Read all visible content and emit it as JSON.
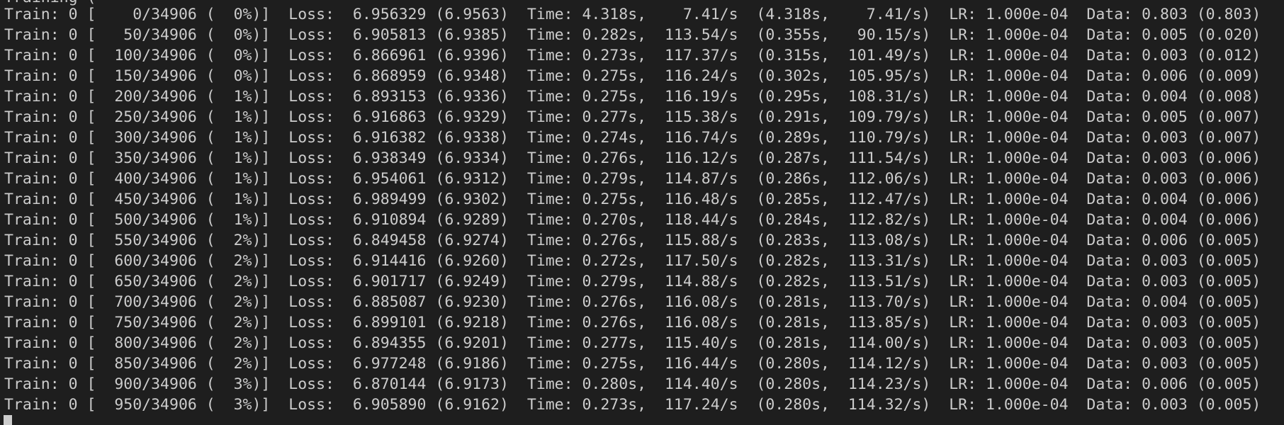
{
  "terminal": {
    "partial_line": "Training (",
    "lines": [
      "Train: 0 [    0/34906 (  0%)]  Loss:  6.956329 (6.9563)  Time: 4.318s,    7.41/s  (4.318s,    7.41/s)  LR: 1.000e-04  Data: 0.803 (0.803)",
      "Train: 0 [   50/34906 (  0%)]  Loss:  6.905813 (6.9385)  Time: 0.282s,  113.54/s  (0.355s,   90.15/s)  LR: 1.000e-04  Data: 0.005 (0.020)",
      "Train: 0 [  100/34906 (  0%)]  Loss:  6.866961 (6.9396)  Time: 0.273s,  117.37/s  (0.315s,  101.49/s)  LR: 1.000e-04  Data: 0.003 (0.012)",
      "Train: 0 [  150/34906 (  0%)]  Loss:  6.868959 (6.9348)  Time: 0.275s,  116.24/s  (0.302s,  105.95/s)  LR: 1.000e-04  Data: 0.006 (0.009)",
      "Train: 0 [  200/34906 (  1%)]  Loss:  6.893153 (6.9336)  Time: 0.275s,  116.19/s  (0.295s,  108.31/s)  LR: 1.000e-04  Data: 0.004 (0.008)",
      "Train: 0 [  250/34906 (  1%)]  Loss:  6.916863 (6.9329)  Time: 0.277s,  115.38/s  (0.291s,  109.79/s)  LR: 1.000e-04  Data: 0.005 (0.007)",
      "Train: 0 [  300/34906 (  1%)]  Loss:  6.916382 (6.9338)  Time: 0.274s,  116.74/s  (0.289s,  110.79/s)  LR: 1.000e-04  Data: 0.003 (0.007)",
      "Train: 0 [  350/34906 (  1%)]  Loss:  6.938349 (6.9334)  Time: 0.276s,  116.12/s  (0.287s,  111.54/s)  LR: 1.000e-04  Data: 0.003 (0.006)",
      "Train: 0 [  400/34906 (  1%)]  Loss:  6.954061 (6.9312)  Time: 0.279s,  114.87/s  (0.286s,  112.06/s)  LR: 1.000e-04  Data: 0.003 (0.006)",
      "Train: 0 [  450/34906 (  1%)]  Loss:  6.989499 (6.9302)  Time: 0.275s,  116.48/s  (0.285s,  112.47/s)  LR: 1.000e-04  Data: 0.004 (0.006)",
      "Train: 0 [  500/34906 (  1%)]  Loss:  6.910894 (6.9289)  Time: 0.270s,  118.44/s  (0.284s,  112.82/s)  LR: 1.000e-04  Data: 0.004 (0.006)",
      "Train: 0 [  550/34906 (  2%)]  Loss:  6.849458 (6.9274)  Time: 0.276s,  115.88/s  (0.283s,  113.08/s)  LR: 1.000e-04  Data: 0.006 (0.005)",
      "Train: 0 [  600/34906 (  2%)]  Loss:  6.914416 (6.9260)  Time: 0.272s,  117.50/s  (0.282s,  113.31/s)  LR: 1.000e-04  Data: 0.003 (0.005)",
      "Train: 0 [  650/34906 (  2%)]  Loss:  6.901717 (6.9249)  Time: 0.279s,  114.88/s  (0.282s,  113.51/s)  LR: 1.000e-04  Data: 0.003 (0.005)",
      "Train: 0 [  700/34906 (  2%)]  Loss:  6.885087 (6.9230)  Time: 0.276s,  116.08/s  (0.281s,  113.70/s)  LR: 1.000e-04  Data: 0.004 (0.005)",
      "Train: 0 [  750/34906 (  2%)]  Loss:  6.899101 (6.9218)  Time: 0.276s,  116.08/s  (0.281s,  113.85/s)  LR: 1.000e-04  Data: 0.003 (0.005)",
      "Train: 0 [  800/34906 (  2%)]  Loss:  6.894355 (6.9201)  Time: 0.277s,  115.40/s  (0.281s,  114.00/s)  LR: 1.000e-04  Data: 0.003 (0.005)",
      "Train: 0 [  850/34906 (  2%)]  Loss:  6.977248 (6.9186)  Time: 0.275s,  116.44/s  (0.280s,  114.12/s)  LR: 1.000e-04  Data: 0.003 (0.005)",
      "Train: 0 [  900/34906 (  3%)]  Loss:  6.870144 (6.9173)  Time: 0.280s,  114.40/s  (0.280s,  114.23/s)  LR: 1.000e-04  Data: 0.006 (0.005)",
      "Train: 0 [  950/34906 (  3%)]  Loss:  6.905890 (6.9162)  Time: 0.273s,  117.24/s  (0.280s,  114.32/s)  LR: 1.000e-04  Data: 0.003 (0.005)"
    ],
    "colors": {
      "background": "#1e1e1e",
      "foreground": "#cccccc"
    }
  }
}
